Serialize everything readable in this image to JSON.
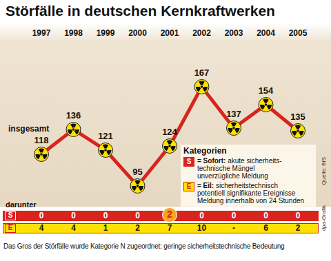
{
  "chart_data": {
    "type": "line",
    "title": "Störfälle in deutschen Kernkraftwerken",
    "categories": [
      "1997",
      "1998",
      "1999",
      "2000",
      "2001",
      "2002",
      "2003",
      "2004",
      "2005"
    ],
    "values": [
      118,
      136,
      121,
      95,
      124,
      167,
      137,
      154,
      135
    ],
    "color": "#d9231d",
    "marker": "radiation",
    "data_labels": true,
    "tick_labels": "x",
    "ylim": [
      80,
      200
    ],
    "yticks": [],
    "annotations": [
      "insgesamt"
    ]
  },
  "legend_box": {
    "title": "Kategorien",
    "entries": [
      {
        "key": "S",
        "name": "= Sofort:",
        "lines": [
          "akute sicherheits-",
          "technische Mängel",
          "unverzügliche Meldung"
        ]
      },
      {
        "key": "E",
        "name": "= Eil:",
        "lines": [
          "sicherheitstechnisch",
          "potentiell signifikante Ereignisse",
          "Meldung innerhalb von 24 Stunden"
        ]
      }
    ]
  },
  "table": {
    "title": "darunter",
    "rows": [
      {
        "key": "S",
        "color": "#d9231d",
        "values": [
          0,
          0,
          0,
          0,
          2,
          0,
          0,
          0,
          0
        ]
      },
      {
        "key": "E",
        "color": "#ffe100",
        "values": [
          4,
          4,
          1,
          2,
          7,
          10,
          "-",
          6,
          2
        ]
      }
    ]
  },
  "footer": "Das Gros der Störfälle wurde Kategorie N zugeordnet: geringe sicherheitstechnische Bedeutung",
  "source": "Quelle: BfS",
  "credit": "dpa-Grafik"
}
